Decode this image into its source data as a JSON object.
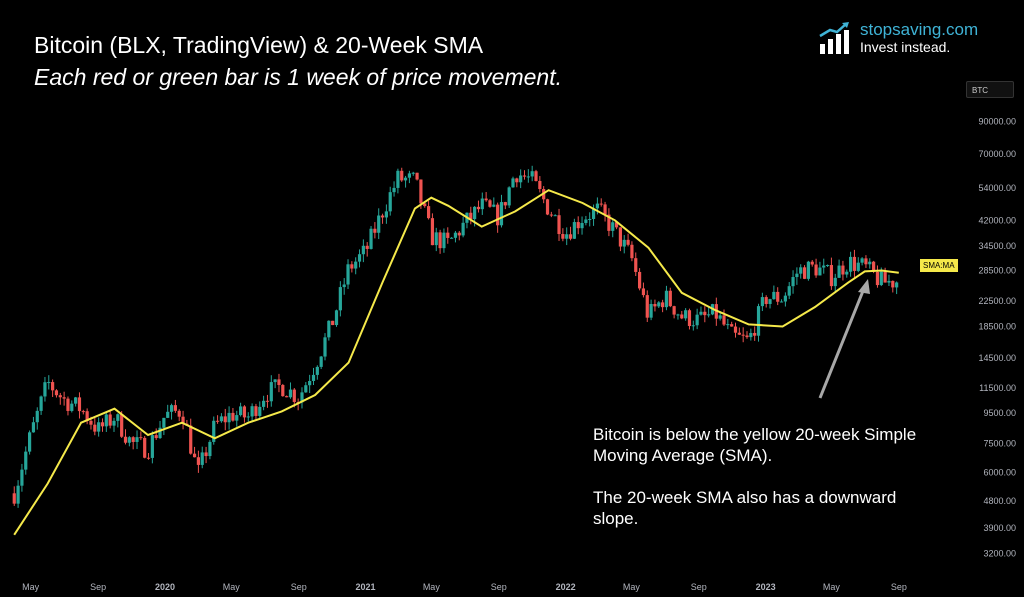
{
  "header": {
    "title": "Bitcoin (BLX, TradingView) & 20-Week SMA",
    "subtitle": "Each red or green bar is 1 week of price movement."
  },
  "brand": {
    "name": "stopsaving.com",
    "tagline": "Invest instead.",
    "color": "#3fb3d6",
    "icon": "bar-chart-arrow-icon"
  },
  "annotation": {
    "paragraph_1": "Bitcoin is below the yellow 20-week Simple Moving Average (SMA).",
    "paragraph_2": "The 20-week SMA also has a downward slope."
  },
  "badges": {
    "symbol": "BTC",
    "sma_label": "SMA:MA"
  },
  "colors": {
    "up": "#26a69a",
    "down": "#ef5350",
    "sma": "#f5e94a",
    "arrow": "#a8a8a8",
    "axis_text": "#b2b5be"
  },
  "chart_data": {
    "type": "candlestick",
    "title": "Bitcoin (BLX, TradingView) & 20-Week SMA",
    "scale": "log",
    "x_tick_labels": [
      "May",
      "Sep",
      "2020",
      "May",
      "Sep",
      "2021",
      "May",
      "Sep",
      "2022",
      "May",
      "Sep",
      "2023",
      "May",
      "Sep"
    ],
    "x_tick_dates": [
      "2019-05",
      "2019-09",
      "2020-01",
      "2020-05",
      "2020-09",
      "2021-01",
      "2021-05",
      "2021-09",
      "2022-01",
      "2022-05",
      "2022-09",
      "2023-01",
      "2023-05",
      "2023-09"
    ],
    "y_tick_labels": [
      "3200.00",
      "3900.00",
      "4800.00",
      "6000.00",
      "7500.00",
      "9500.00",
      "11500.00",
      "14500.00",
      "18500.00",
      "22500.00",
      "28500.00",
      "34500.00",
      "42000.00",
      "54000.00",
      "70000.00",
      "90000.00"
    ],
    "y_ticks": [
      3200,
      3900,
      4800,
      6000,
      7500,
      9500,
      11500,
      14500,
      18500,
      22500,
      28500,
      34500,
      42000,
      54000,
      70000,
      90000
    ],
    "ylim": [
      3000,
      100000
    ],
    "grid": false,
    "series": [
      {
        "name": "SMA:MA",
        "kind": "line",
        "points": [
          {
            "date": "2019-04",
            "value": 3700
          },
          {
            "date": "2019-06",
            "value": 5500
          },
          {
            "date": "2019-08",
            "value": 8800
          },
          {
            "date": "2019-10",
            "value": 9800
          },
          {
            "date": "2019-12",
            "value": 8000
          },
          {
            "date": "2020-02",
            "value": 8800
          },
          {
            "date": "2020-04",
            "value": 7800
          },
          {
            "date": "2020-06",
            "value": 8800
          },
          {
            "date": "2020-08",
            "value": 9600
          },
          {
            "date": "2020-10",
            "value": 10900
          },
          {
            "date": "2020-12",
            "value": 14000
          },
          {
            "date": "2021-02",
            "value": 26000
          },
          {
            "date": "2021-04",
            "value": 46000
          },
          {
            "date": "2021-05",
            "value": 50000
          },
          {
            "date": "2021-06",
            "value": 47000
          },
          {
            "date": "2021-08",
            "value": 40000
          },
          {
            "date": "2021-10",
            "value": 45000
          },
          {
            "date": "2021-12",
            "value": 53000
          },
          {
            "date": "2022-02",
            "value": 48000
          },
          {
            "date": "2022-04",
            "value": 42000
          },
          {
            "date": "2022-06",
            "value": 34000
          },
          {
            "date": "2022-08",
            "value": 24000
          },
          {
            "date": "2022-10",
            "value": 21000
          },
          {
            "date": "2022-12",
            "value": 18800
          },
          {
            "date": "2023-02",
            "value": 18500
          },
          {
            "date": "2023-04",
            "value": 21500
          },
          {
            "date": "2023-06",
            "value": 26000
          },
          {
            "date": "2023-07",
            "value": 28300
          },
          {
            "date": "2023-08",
            "value": 28500
          },
          {
            "date": "2023-09",
            "value": 28000
          }
        ]
      },
      {
        "name": "",
        "kind": "candles",
        "note": "weekly candles; value = weekly close",
        "points": [
          {
            "date": "2019-04",
            "value": 5100
          },
          {
            "date": "2019-05",
            "value": 8000
          },
          {
            "date": "2019-06",
            "value": 12000
          },
          {
            "date": "2019-07",
            "value": 10500
          },
          {
            "date": "2019-08",
            "value": 9800
          },
          {
            "date": "2019-09",
            "value": 8300
          },
          {
            "date": "2019-10",
            "value": 9200
          },
          {
            "date": "2019-11",
            "value": 7500
          },
          {
            "date": "2019-12",
            "value": 7200
          },
          {
            "date": "2020-01",
            "value": 9300
          },
          {
            "date": "2020-02",
            "value": 9700
          },
          {
            "date": "2020-03",
            "value": 5900
          },
          {
            "date": "2020-04",
            "value": 8600
          },
          {
            "date": "2020-05",
            "value": 9400
          },
          {
            "date": "2020-06",
            "value": 9200
          },
          {
            "date": "2020-07",
            "value": 11000
          },
          {
            "date": "2020-08",
            "value": 11700
          },
          {
            "date": "2020-09",
            "value": 10700
          },
          {
            "date": "2020-10",
            "value": 13800
          },
          {
            "date": "2020-11",
            "value": 19000
          },
          {
            "date": "2020-12",
            "value": 28900
          },
          {
            "date": "2021-01",
            "value": 33000
          },
          {
            "date": "2021-02",
            "value": 45000
          },
          {
            "date": "2021-03",
            "value": 58000
          },
          {
            "date": "2021-04",
            "value": 57000
          },
          {
            "date": "2021-05",
            "value": 37000
          },
          {
            "date": "2021-06",
            "value": 35000
          },
          {
            "date": "2021-07",
            "value": 41000
          },
          {
            "date": "2021-08",
            "value": 47000
          },
          {
            "date": "2021-09",
            "value": 43000
          },
          {
            "date": "2021-10",
            "value": 61000
          },
          {
            "date": "2021-11",
            "value": 57000
          },
          {
            "date": "2021-12",
            "value": 46000
          },
          {
            "date": "2022-01",
            "value": 38000
          },
          {
            "date": "2022-02",
            "value": 43000
          },
          {
            "date": "2022-03",
            "value": 45500
          },
          {
            "date": "2022-04",
            "value": 38500
          },
          {
            "date": "2022-05",
            "value": 31500
          },
          {
            "date": "2022-06",
            "value": 20000
          },
          {
            "date": "2022-07",
            "value": 23300
          },
          {
            "date": "2022-08",
            "value": 20000
          },
          {
            "date": "2022-09",
            "value": 19400
          },
          {
            "date": "2022-10",
            "value": 20500
          },
          {
            "date": "2022-11",
            "value": 17100
          },
          {
            "date": "2022-12",
            "value": 16500
          },
          {
            "date": "2023-01",
            "value": 23100
          },
          {
            "date": "2023-02",
            "value": 23100
          },
          {
            "date": "2023-03",
            "value": 28400
          },
          {
            "date": "2023-04",
            "value": 29200
          },
          {
            "date": "2023-05",
            "value": 27200
          },
          {
            "date": "2023-06",
            "value": 30500
          },
          {
            "date": "2023-07",
            "value": 29200
          },
          {
            "date": "2023-08",
            "value": 26000
          },
          {
            "date": "2023-09",
            "value": 26300
          }
        ]
      }
    ]
  }
}
